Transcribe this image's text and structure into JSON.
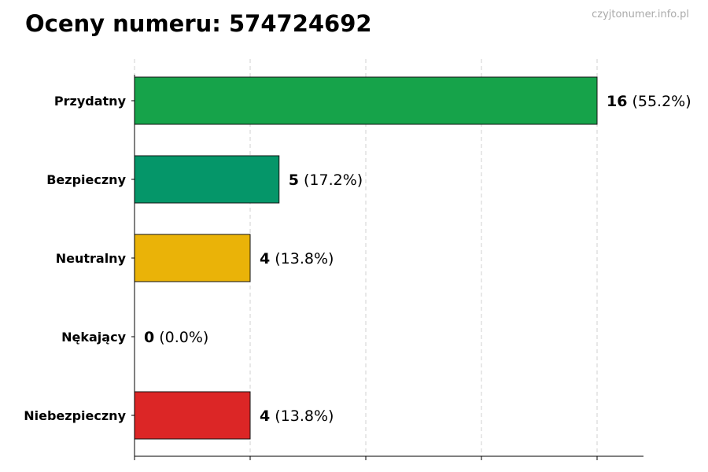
{
  "chart_data": {
    "type": "bar",
    "orientation": "horizontal",
    "title": "Oceny numeru: 574724692",
    "categories": [
      "Przydatny",
      "Bezpieczny",
      "Neutralny",
      "Nękający",
      "Niebezpieczny"
    ],
    "values": [
      16,
      5,
      4,
      0,
      4
    ],
    "value_labels": [
      "16",
      "5",
      "4",
      "0",
      "4"
    ],
    "percent_labels": [
      "(55.2%)",
      "(17.2%)",
      "(13.8%)",
      "(0.0%)",
      "(13.8%)"
    ],
    "colors": [
      "#16a34a",
      "#059669",
      "#eab308",
      "#dc2626",
      "#dc2626"
    ],
    "xlim": [
      0,
      17.6
    ],
    "x_gridlines": [
      0,
      4,
      8,
      12,
      16
    ],
    "grid": true,
    "xlabel": "",
    "ylabel": ""
  },
  "watermark": "czyjtonumer.info.pl"
}
